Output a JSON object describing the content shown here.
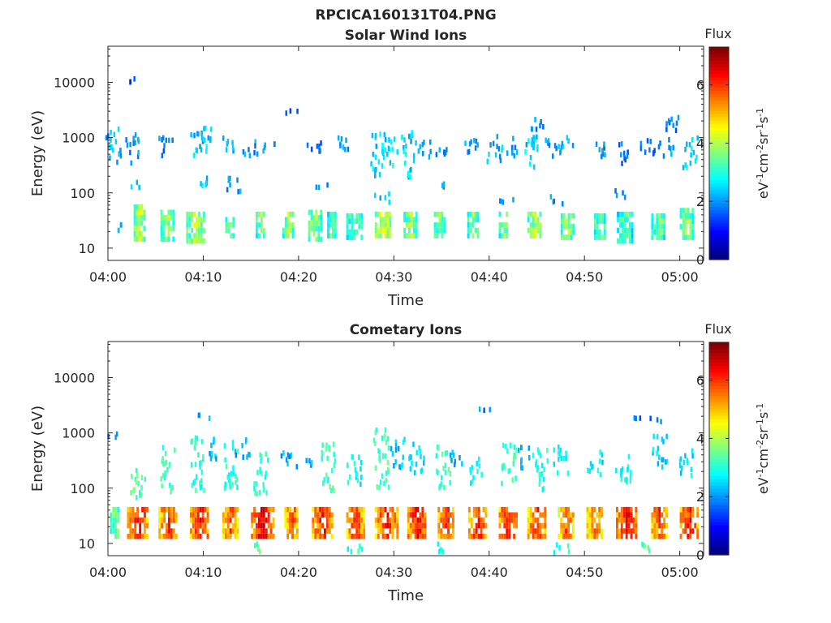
{
  "figure": {
    "title": "RPCICA160131T04.PNG"
  },
  "colorbar": {
    "title": "Flux",
    "label": "eV-1cm-2sr-1s-1",
    "ticks": [
      0,
      2,
      4,
      6
    ],
    "range": [
      0,
      7.3
    ],
    "colormap": "jet"
  },
  "chart_data": [
    {
      "type": "heatmap",
      "title": "Solar Wind Ions",
      "xlabel": "Time",
      "ylabel": "Energy (eV)",
      "x_ticks": [
        "04:00",
        "04:10",
        "04:20",
        "04:30",
        "04:40",
        "04:50",
        "05:00"
      ],
      "y_ticks": [
        "10",
        "100",
        "1000",
        "10000"
      ],
      "y_scale": "log",
      "ylim": [
        6,
        45000
      ],
      "xlim_minutes": [
        0,
        62.5
      ],
      "cell_minutes": 0.25,
      "blocks": [
        [
          1.0,
          1.3,
          15,
          28,
          2.2
        ],
        [
          2.7,
          3.8,
          13,
          50,
          4.2
        ],
        [
          5.5,
          6.8,
          13,
          40,
          3.8
        ],
        [
          8.2,
          10.0,
          12,
          45,
          4.0
        ],
        [
          12.3,
          13.3,
          15,
          30,
          3.6
        ],
        [
          15.5,
          16.5,
          15,
          38,
          3.8
        ],
        [
          18.3,
          19.4,
          15,
          38,
          3.8
        ],
        [
          21.0,
          22.3,
          13,
          40,
          3.8
        ],
        [
          23.0,
          23.8,
          15,
          38,
          3.6
        ],
        [
          25.0,
          26.6,
          14,
          38,
          3.6
        ],
        [
          28.0,
          29.7,
          15,
          40,
          4.3
        ],
        [
          31.0,
          32.3,
          15,
          40,
          3.8
        ],
        [
          34.2,
          35.4,
          15,
          38,
          3.6
        ],
        [
          37.7,
          38.8,
          15,
          40,
          3.8
        ],
        [
          41.0,
          42.0,
          15,
          40,
          3.8
        ],
        [
          44.0,
          45.5,
          15,
          45,
          4.0
        ],
        [
          47.5,
          48.8,
          14,
          40,
          3.8
        ],
        [
          51.0,
          52.1,
          14,
          38,
          3.6
        ],
        [
          53.4,
          55.0,
          12,
          40,
          3.4
        ],
        [
          57.0,
          58.3,
          14,
          38,
          3.6
        ],
        [
          60.0,
          61.3,
          14,
          50,
          3.8
        ]
      ],
      "scatter": [
        [
          0.5,
          300,
          1300,
          2.2
        ],
        [
          2.5,
          300,
          1000,
          2.0
        ],
        [
          6.0,
          400,
          900,
          1.8
        ],
        [
          9.2,
          400,
          1100,
          2.2
        ],
        [
          10.4,
          500,
          1400,
          2.4
        ],
        [
          12.5,
          500,
          900,
          2.2
        ],
        [
          14.8,
          400,
          800,
          2.0
        ],
        [
          17.0,
          500,
          800,
          2.0
        ],
        [
          21.5,
          500,
          900,
          1.8
        ],
        [
          24.5,
          500,
          1000,
          2.0
        ],
        [
          28.3,
          180,
          1100,
          2.4
        ],
        [
          29.5,
          250,
          900,
          2.6
        ],
        [
          31.5,
          150,
          1100,
          2.4
        ],
        [
          33.0,
          400,
          800,
          2.2
        ],
        [
          35.0,
          400,
          700,
          2.0
        ],
        [
          38.0,
          400,
          900,
          2.0
        ],
        [
          40.5,
          300,
          1000,
          2.2
        ],
        [
          42.5,
          400,
          900,
          2.0
        ],
        [
          44.5,
          250,
          1100,
          2.4
        ],
        [
          46.5,
          400,
          800,
          2.0
        ],
        [
          48.0,
          400,
          900,
          2.2
        ],
        [
          51.5,
          300,
          700,
          1.8
        ],
        [
          54.0,
          300,
          700,
          1.8
        ],
        [
          56.5,
          400,
          900,
          1.8
        ],
        [
          58.5,
          400,
          900,
          2.0
        ],
        [
          61.0,
          250,
          900,
          2.4
        ],
        [
          59.0,
          1000,
          2300,
          1.8
        ],
        [
          44.8,
          1200,
          2200,
          1.8
        ],
        [
          3.0,
          9000,
          11000,
          1.4
        ],
        [
          19.2,
          2400,
          2800,
          1.4
        ],
        [
          2.8,
          110,
          140,
          2.2
        ],
        [
          10.0,
          110,
          180,
          2.4
        ],
        [
          13.0,
          90,
          180,
          2.0
        ],
        [
          22.5,
          110,
          140,
          2.0
        ],
        [
          28.7,
          60,
          90,
          2.2
        ],
        [
          35.0,
          110,
          140,
          2.0
        ],
        [
          41.8,
          55,
          80,
          2.0
        ],
        [
          47.0,
          55,
          80,
          2.0
        ],
        [
          53.8,
          70,
          100,
          2.0
        ]
      ]
    },
    {
      "type": "heatmap",
      "title": "Cometary Ions",
      "xlabel": "Time",
      "ylabel": "Energy (eV)",
      "x_ticks": [
        "04:00",
        "04:10",
        "04:20",
        "04:30",
        "04:40",
        "04:50",
        "05:00"
      ],
      "y_ticks": [
        "10",
        "100",
        "1000",
        "10000"
      ],
      "y_scale": "log",
      "ylim": [
        6,
        45000
      ],
      "xlim_minutes": [
        0,
        62.5
      ],
      "cell_minutes": 0.25,
      "blocks": [
        [
          0.2,
          1.2,
          12,
          40,
          3.6
        ],
        [
          2.0,
          4.2,
          12,
          45,
          6.2
        ],
        [
          5.3,
          7.3,
          12,
          45,
          6.0
        ],
        [
          8.6,
          10.6,
          12,
          45,
          6.2
        ],
        [
          12.0,
          13.6,
          12,
          45,
          5.8
        ],
        [
          15.0,
          17.3,
          12,
          45,
          6.6
        ],
        [
          18.5,
          20.0,
          12,
          45,
          5.8
        ],
        [
          21.4,
          23.6,
          12,
          45,
          6.2
        ],
        [
          25.0,
          26.8,
          12,
          45,
          6.0
        ],
        [
          28.0,
          30.3,
          12,
          45,
          6.2
        ],
        [
          31.4,
          33.4,
          12,
          45,
          6.4
        ],
        [
          34.6,
          36.3,
          12,
          45,
          6.0
        ],
        [
          37.8,
          39.6,
          12,
          45,
          6.2
        ],
        [
          41.0,
          42.9,
          12,
          45,
          6.2
        ],
        [
          44.0,
          46.0,
          12,
          45,
          6.0
        ],
        [
          47.2,
          48.8,
          12,
          45,
          5.8
        ],
        [
          50.2,
          51.9,
          12,
          45,
          5.6
        ],
        [
          53.3,
          55.4,
          12,
          45,
          6.4
        ],
        [
          57.0,
          58.6,
          12,
          45,
          6.0
        ],
        [
          60.0,
          61.8,
          12,
          45,
          6.2
        ]
      ],
      "scatter": [
        [
          0.6,
          700,
          900,
          2.0
        ],
        [
          3.0,
          60,
          250,
          3.4
        ],
        [
          6.1,
          70,
          500,
          3.2
        ],
        [
          9.3,
          80,
          1100,
          3.0
        ],
        [
          10.8,
          300,
          700,
          2.2
        ],
        [
          12.8,
          80,
          600,
          3.0
        ],
        [
          14.0,
          300,
          700,
          2.2
        ],
        [
          16.0,
          70,
          400,
          3.0
        ],
        [
          18.5,
          200,
          400,
          2.2
        ],
        [
          20.5,
          200,
          300,
          2.2
        ],
        [
          23.0,
          80,
          600,
          3.2
        ],
        [
          25.8,
          100,
          400,
          2.8
        ],
        [
          28.6,
          80,
          1100,
          3.2
        ],
        [
          30.3,
          200,
          700,
          2.4
        ],
        [
          32.3,
          150,
          600,
          2.6
        ],
        [
          35.1,
          80,
          500,
          3.2
        ],
        [
          36.5,
          200,
          400,
          2.2
        ],
        [
          38.5,
          100,
          300,
          2.8
        ],
        [
          42.0,
          90,
          600,
          3.2
        ],
        [
          43.5,
          200,
          500,
          2.2
        ],
        [
          45.3,
          80,
          500,
          3.0
        ],
        [
          47.5,
          150,
          500,
          2.6
        ],
        [
          51.0,
          150,
          400,
          2.6
        ],
        [
          54.0,
          100,
          400,
          2.8
        ],
        [
          57.8,
          200,
          800,
          2.4
        ],
        [
          60.5,
          150,
          500,
          2.6
        ],
        [
          39.5,
          2200,
          2500,
          1.8
        ],
        [
          55.5,
          1500,
          1800,
          1.6
        ],
        [
          57.5,
          1400,
          1700,
          1.8
        ],
        [
          10.2,
          1600,
          1900,
          2.0
        ],
        [
          56.0,
          6,
          9,
          3.4
        ],
        [
          15.7,
          6,
          9,
          3.4
        ],
        [
          25.8,
          6,
          9,
          3.0
        ],
        [
          35.0,
          6,
          9,
          3.0
        ],
        [
          47.5,
          6,
          9,
          3.0
        ]
      ]
    }
  ]
}
